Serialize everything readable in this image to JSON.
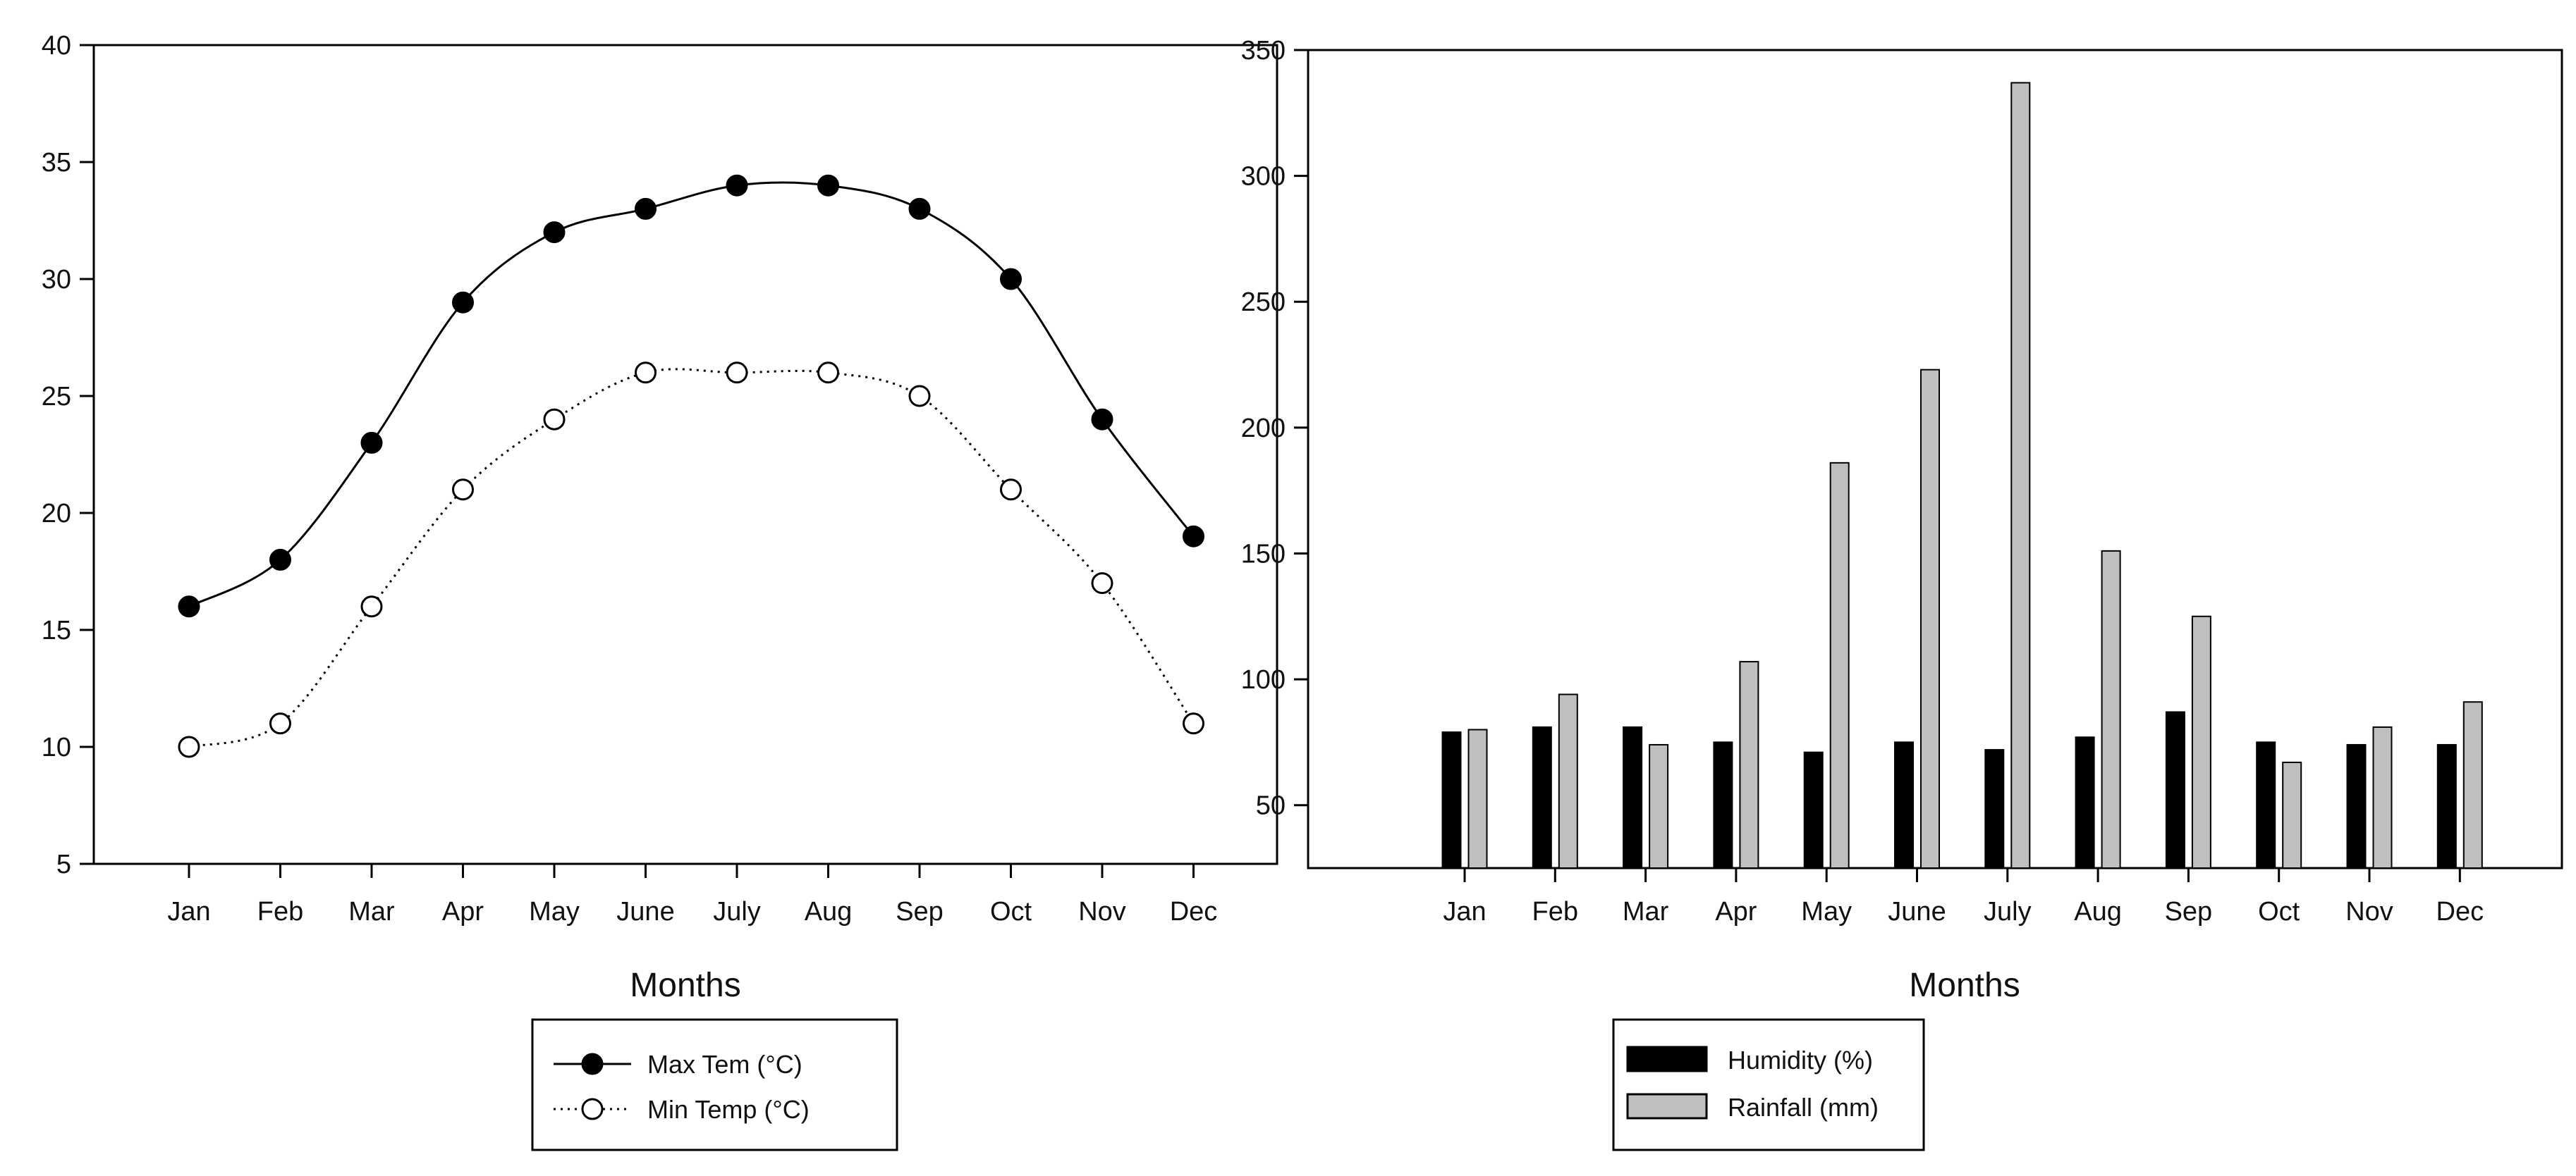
{
  "chart_data": [
    {
      "type": "line",
      "title": "",
      "xlabel": "Months",
      "ylabel": "",
      "ylim": [
        5,
        40
      ],
      "yticks": [
        5,
        10,
        15,
        20,
        25,
        30,
        35,
        40
      ],
      "categories": [
        "Jan",
        "Feb",
        "Mar",
        "Apr",
        "May",
        "June",
        "July",
        "Aug",
        "Sep",
        "Oct",
        "Nov",
        "Dec"
      ],
      "grid": false,
      "legend_position": "bottom-center",
      "series": [
        {
          "name": "Max Tem  (°C)",
          "values": [
            16,
            18,
            23,
            29,
            32,
            33,
            34,
            34,
            33,
            30,
            24,
            19
          ],
          "marker": "filled-circle",
          "line": "solid",
          "color": "#000000"
        },
        {
          "name": "Min Temp  (°C)",
          "values": [
            10,
            11,
            16,
            21,
            24,
            26,
            26,
            26,
            25,
            21,
            17,
            11
          ],
          "marker": "open-circle",
          "line": "dotted",
          "color": "#000000"
        }
      ]
    },
    {
      "type": "bar",
      "title": "",
      "xlabel": "Months",
      "ylabel": "",
      "ylim": [
        25,
        350
      ],
      "yticks": [
        50,
        100,
        150,
        200,
        250,
        300,
        350
      ],
      "categories": [
        "Jan",
        "Feb",
        "Mar",
        "Apr",
        "May",
        "June",
        "July",
        "Aug",
        "Sep",
        "Oct",
        "Nov",
        "Dec"
      ],
      "grid": false,
      "legend_position": "bottom-center",
      "series": [
        {
          "name": "Humidity (%)",
          "values": [
            79,
            81,
            81,
            75,
            71,
            75,
            72,
            77,
            87,
            75,
            74,
            74
          ],
          "color": "#000000"
        },
        {
          "name": "Rainfall (mm)",
          "values": [
            80,
            94,
            74,
            107,
            186,
            223,
            337,
            151,
            125,
            67,
            81,
            91
          ],
          "color": "#bfbfbf"
        }
      ]
    }
  ]
}
